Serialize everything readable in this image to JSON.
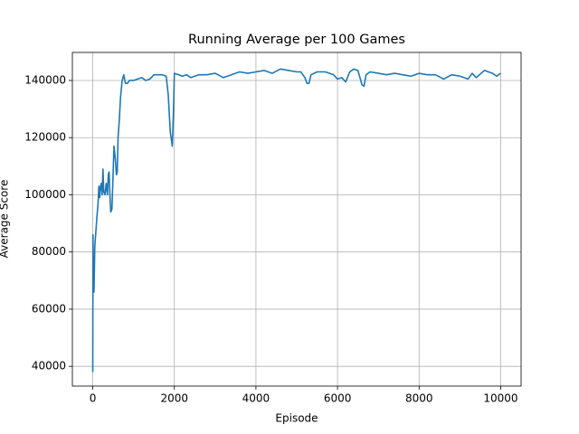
{
  "chart_data": {
    "type": "line",
    "title": "Running Average per 100 Games",
    "x_label": "Episode",
    "y_label": "Average Score",
    "x": [
      0,
      5,
      15,
      30,
      50,
      80,
      100,
      130,
      150,
      170,
      190,
      210,
      230,
      250,
      270,
      300,
      330,
      360,
      380,
      400,
      420,
      440,
      470,
      500,
      520,
      550,
      580,
      600,
      620,
      650,
      680,
      720,
      760,
      800,
      850,
      900,
      1000,
      1100,
      1200,
      1300,
      1400,
      1500,
      1700,
      1800,
      1850,
      1900,
      1950,
      1980,
      2000,
      2100,
      2200,
      2300,
      2400,
      2600,
      2800,
      3000,
      3200,
      3400,
      3600,
      3800,
      4000,
      4200,
      4400,
      4600,
      4800,
      5000,
      5100,
      5200,
      5250,
      5300,
      5350,
      5500,
      5700,
      5900,
      6000,
      6100,
      6200,
      6300,
      6400,
      6500,
      6600,
      6650,
      6700,
      6800,
      7000,
      7200,
      7400,
      7600,
      7800,
      8000,
      8200,
      8400,
      8600,
      8800,
      9000,
      9200,
      9300,
      9400,
      9600,
      9700,
      9800,
      9900,
      10000
    ],
    "series": [
      {
        "name": "Running Average",
        "color": "#1f77b4",
        "values": [
          38000,
          86000,
          70000,
          66000,
          82000,
          88000,
          92000,
          97000,
          103000,
          99000,
          103000,
          104000,
          100000,
          109000,
          101000,
          100000,
          104000,
          100000,
          107000,
          108000,
          100000,
          94000,
          95000,
          108000,
          117000,
          113000,
          107000,
          108000,
          120000,
          126000,
          134000,
          140000,
          142000,
          139000,
          139000,
          140000,
          140000,
          140500,
          141000,
          140000,
          140500,
          142000,
          142000,
          141500,
          135000,
          122000,
          117000,
          130000,
          142500,
          142000,
          141500,
          142000,
          141000,
          142000,
          142000,
          142500,
          141000,
          142000,
          143000,
          142500,
          143000,
          143500,
          142500,
          144000,
          143500,
          143000,
          143000,
          141000,
          139000,
          139000,
          142000,
          143000,
          143000,
          142000,
          140500,
          141000,
          139500,
          143000,
          144000,
          143500,
          138500,
          138000,
          142000,
          143000,
          142500,
          142000,
          142500,
          142000,
          141500,
          142500,
          142000,
          142000,
          140500,
          142000,
          141500,
          140500,
          142500,
          141000,
          143500,
          143000,
          142500,
          141500,
          142500
        ]
      }
    ],
    "xlim": [
      -500,
      10500
    ],
    "ylim": [
      33100,
      149800
    ],
    "xticks": [
      0,
      2000,
      4000,
      6000,
      8000,
      10000
    ],
    "yticks": [
      40000,
      60000,
      80000,
      100000,
      120000,
      140000
    ],
    "grid": true
  }
}
